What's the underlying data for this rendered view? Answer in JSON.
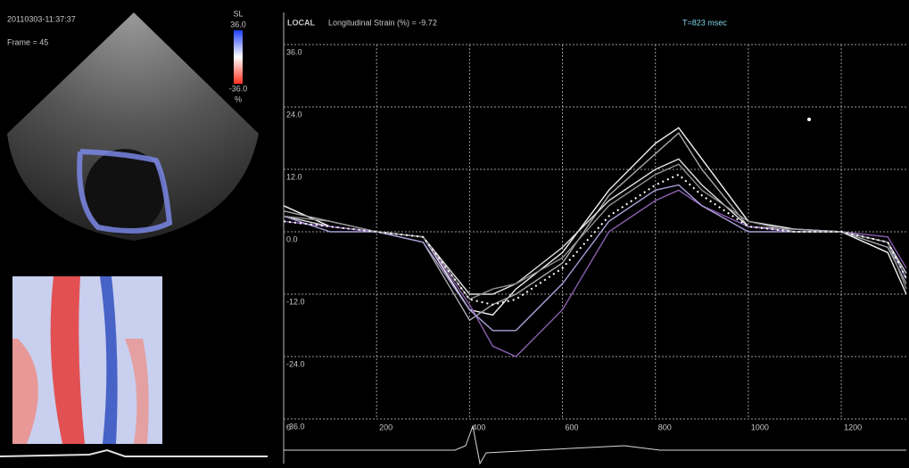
{
  "header": {
    "timestamp": "20110303-11:37:37",
    "frame": "Frame = 45"
  },
  "colorbar": {
    "label": "SL",
    "max": "36.0",
    "min": "-36.0",
    "unit": "%"
  },
  "chart_data": {
    "type": "line",
    "title": "LOCAL",
    "subtitle": "Longitudinal Strain (%) = -9.72",
    "annotations": [
      "T=823 msec"
    ],
    "x": [
      0,
      100,
      200,
      300,
      400,
      450,
      500,
      600,
      700,
      800,
      850,
      900,
      1000,
      1100,
      1200,
      1300,
      1340
    ],
    "series": [
      {
        "color": "#f2f2f2",
        "values": [
          5,
          1,
          0,
          -1,
          -15,
          -16,
          -11,
          -4,
          8,
          17,
          20,
          14,
          2,
          0.5,
          0,
          -4,
          -12
        ]
      },
      {
        "color": "#a8a8b0",
        "values": [
          4,
          2,
          0,
          -2,
          -17,
          -14,
          -12,
          -6,
          7,
          15,
          19,
          12,
          1,
          0.5,
          0,
          -3,
          -10
        ]
      },
      {
        "color": "#e0e0e0",
        "values": [
          3,
          1,
          0,
          -1,
          -12,
          -12,
          -10,
          -3,
          6,
          12,
          14,
          9,
          1,
          0,
          0,
          -2,
          -8
        ]
      },
      {
        "color": "#8a5fb0",
        "values": [
          2,
          1,
          0,
          -1,
          -14,
          -22,
          -24,
          -15,
          0,
          6,
          8,
          5,
          1,
          0,
          0,
          -1,
          -7
        ]
      },
      {
        "color": "#a9a0d8",
        "values": [
          3,
          0,
          0,
          -2,
          -15,
          -19,
          -19,
          -10,
          2,
          8,
          9,
          5,
          0,
          0,
          0,
          -2,
          -9
        ]
      },
      {
        "color": "#909090",
        "values": [
          3,
          2,
          0,
          -1,
          -13,
          -11,
          -10,
          -5,
          5,
          11,
          13,
          8,
          2,
          0,
          0,
          -2,
          -11
        ]
      },
      {
        "color": "#ffffff",
        "dashed": true,
        "values": [
          2,
          1,
          0,
          -1,
          -13,
          -14,
          -13,
          -7,
          3,
          9,
          11,
          7,
          1,
          0,
          0,
          -2,
          -9
        ]
      }
    ],
    "xlim": [
      0,
      1340
    ],
    "ylim": [
      -36,
      36
    ],
    "xticks": [
      0,
      200,
      400,
      600,
      800,
      1000,
      1200
    ],
    "yticks": [
      {
        "value": 36,
        "label": "36.0"
      },
      {
        "value": 24,
        "label": "24.0"
      },
      {
        "value": 12,
        "label": "12.0"
      },
      {
        "value": 0,
        "label": "0.0"
      },
      {
        "value": -12,
        "label": "-12.0"
      },
      {
        "value": -24,
        "label": "-24.0"
      },
      {
        "value": -36,
        "label": "-36.0"
      }
    ],
    "grid": true
  }
}
